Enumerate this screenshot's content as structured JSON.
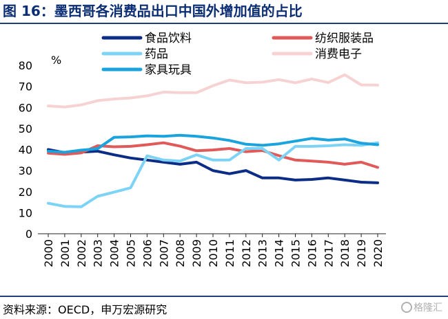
{
  "figure": {
    "title": "图 16：墨西哥各消费品出口中国外增加值的占比",
    "source": "资料来源：OECD，申万宏源研究",
    "watermark": "格隆汇",
    "unit": "%"
  },
  "chart_data": {
    "type": "line",
    "title": "图 16：墨西哥各消费品出口中国外增加值的占比",
    "xlabel": "",
    "ylabel": "%",
    "ylim": [
      0,
      80
    ],
    "yticks": [
      0,
      10,
      20,
      30,
      40,
      50,
      60,
      70,
      80
    ],
    "grid": false,
    "legend_position": "top",
    "x": [
      "2000",
      "2001",
      "2002",
      "2003",
      "2004",
      "2005",
      "2006",
      "2007",
      "2008",
      "2009",
      "2010",
      "2011",
      "2012",
      "2013",
      "2014",
      "2015",
      "2016",
      "2017",
      "2018",
      "2019",
      "2020"
    ],
    "series": [
      {
        "name": "食品饮料",
        "color": "#0b2d86",
        "values": [
          40,
          38.5,
          38.8,
          39.2,
          37.5,
          36,
          35,
          34,
          33,
          34,
          30,
          28.5,
          30,
          26.5,
          26.5,
          25.5,
          25.8,
          26.5,
          25.5,
          24.5,
          24.2
        ]
      },
      {
        "name": "纺织服装品",
        "color": "#e05a5a",
        "values": [
          38.3,
          37.7,
          38.4,
          41.8,
          41.3,
          41.5,
          42.3,
          43.2,
          41.6,
          39.4,
          39.8,
          40.5,
          39,
          39.5,
          37.1,
          35,
          34.5,
          34,
          33,
          34,
          31.5
        ]
      },
      {
        "name": "药品",
        "color": "#7dd3f5",
        "values": [
          14.5,
          13,
          12.8,
          17.8,
          19.8,
          21.8,
          37,
          35,
          34.5,
          37.5,
          35,
          35,
          40.5,
          40.5,
          35,
          41.5,
          41.5,
          41.8,
          42.3,
          42,
          43.2
        ]
      },
      {
        "name": "消费电子",
        "color": "#f7d2d2",
        "values": [
          60.7,
          60.2,
          61.2,
          63.2,
          64,
          64.5,
          65.5,
          67.3,
          67,
          67,
          70.3,
          73,
          71.7,
          72,
          73.2,
          71.7,
          73.5,
          71.8,
          75.5,
          70.7,
          70.6
        ]
      },
      {
        "name": "家具玩具",
        "color": "#1aa3dc",
        "values": [
          39.2,
          38.7,
          39.7,
          40.4,
          45.8,
          46,
          46.5,
          46.3,
          46.8,
          46.3,
          45.5,
          44.3,
          42.5,
          42,
          42.7,
          44,
          45.3,
          44.5,
          45,
          43,
          42.3
        ]
      }
    ]
  }
}
